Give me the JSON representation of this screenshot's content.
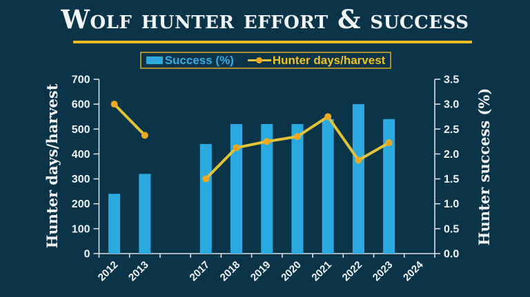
{
  "title": "Wolf hunter effort & success",
  "colors": {
    "background": "#0c3449",
    "bar": "#29abe2",
    "line": "#e6c335",
    "marker": "#f2a81d",
    "gold": "#eebc20",
    "legend_border": "#a8922f",
    "legend_bar_text": "#2fb0e8",
    "legend_line_text": "#f3c21e",
    "axis": "#d9e0e3",
    "text": "#f2f5f5"
  },
  "chart_data": {
    "type": "bar+line (dual axis combo)",
    "title": "Wolf hunter effort & success",
    "categories": [
      "2012",
      "2013",
      "",
      "2017",
      "2018",
      "2019",
      "2020",
      "2021",
      "2022",
      "2023",
      "2024"
    ],
    "series": [
      {
        "name": "Success (%)",
        "type": "bar",
        "axis": "right",
        "color": "#29abe2",
        "values": [
          1.2,
          1.6,
          null,
          2.2,
          2.6,
          2.6,
          2.6,
          2.7,
          3.0,
          2.7,
          null
        ]
      },
      {
        "name": "Hunter days/harvest",
        "type": "line",
        "axis": "left",
        "color": "#e6c335",
        "values": [
          600,
          475,
          null,
          300,
          425,
          450,
          470,
          550,
          375,
          445,
          null
        ]
      }
    ],
    "left_axis": {
      "label": "Hunter days/harvest",
      "min": 0,
      "max": 700,
      "step": 100,
      "ticks": [
        "700",
        "600",
        "500",
        "400",
        "300",
        "200",
        "100",
        "0"
      ]
    },
    "right_axis": {
      "label": "Hunter success (%)",
      "min": 0,
      "max": 3.5,
      "step": 0.5,
      "ticks": [
        "3.5",
        "3.0",
        "2.5",
        "2.0",
        "1.5",
        "1.0",
        "0.5",
        "0.0"
      ]
    },
    "legend_position": "top-center",
    "grid": false,
    "notes": "No data plotted for blank category between 2013 and 2017 (years 2014-2016) and none for 2024; line breaks across the gap."
  }
}
